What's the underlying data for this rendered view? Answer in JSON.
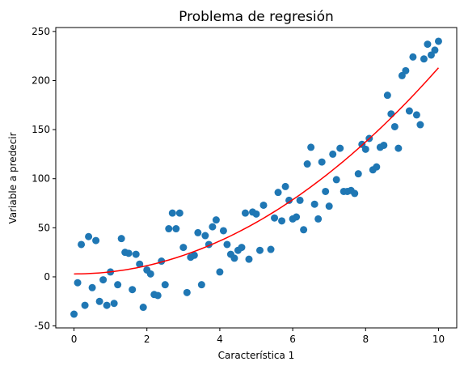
{
  "chart_data": {
    "type": "scatter",
    "title": "Problema de regresión",
    "xlabel": "Característica 1",
    "ylabel": "Variable a predecir",
    "xlim": [
      -0.5,
      10.5
    ],
    "ylim": [
      -52,
      254
    ],
    "xticks": [
      0,
      2,
      4,
      6,
      8,
      10
    ],
    "yticks": [
      -50,
      0,
      50,
      100,
      150,
      200,
      250
    ],
    "grid": false,
    "legend": "none",
    "scatter_color": "#1f77b4",
    "line_color": "#ff0000",
    "points": [
      [
        0.0,
        -38
      ],
      [
        0.1,
        -6
      ],
      [
        0.2,
        33
      ],
      [
        0.3,
        -29
      ],
      [
        0.4,
        41
      ],
      [
        0.5,
        -11
      ],
      [
        0.6,
        37
      ],
      [
        0.7,
        -25
      ],
      [
        0.8,
        -3
      ],
      [
        0.9,
        -29
      ],
      [
        1.0,
        5
      ],
      [
        1.1,
        -27
      ],
      [
        1.2,
        -8
      ],
      [
        1.3,
        39
      ],
      [
        1.4,
        25
      ],
      [
        1.5,
        24
      ],
      [
        1.6,
        -13
      ],
      [
        1.7,
        23
      ],
      [
        1.8,
        13
      ],
      [
        1.9,
        -31
      ],
      [
        2.0,
        7
      ],
      [
        2.1,
        3
      ],
      [
        2.2,
        -18
      ],
      [
        2.3,
        -19
      ],
      [
        2.4,
        16
      ],
      [
        2.5,
        -8
      ],
      [
        2.6,
        49
      ],
      [
        2.7,
        65
      ],
      [
        2.8,
        49
      ],
      [
        2.9,
        65
      ],
      [
        3.0,
        30
      ],
      [
        3.1,
        -16
      ],
      [
        3.2,
        20
      ],
      [
        3.3,
        22
      ],
      [
        3.4,
        45
      ],
      [
        3.5,
        -8
      ],
      [
        3.6,
        42
      ],
      [
        3.7,
        33
      ],
      [
        3.8,
        51
      ],
      [
        3.9,
        58
      ],
      [
        4.0,
        5
      ],
      [
        4.1,
        47
      ],
      [
        4.2,
        33
      ],
      [
        4.3,
        23
      ],
      [
        4.4,
        19
      ],
      [
        4.5,
        27
      ],
      [
        4.6,
        30
      ],
      [
        4.7,
        65
      ],
      [
        4.8,
        18
      ],
      [
        4.9,
        66
      ],
      [
        5.0,
        64
      ],
      [
        5.1,
        27
      ],
      [
        5.2,
        73
      ],
      [
        5.4,
        28
      ],
      [
        5.5,
        60
      ],
      [
        5.6,
        86
      ],
      [
        5.7,
        57
      ],
      [
        5.8,
        92
      ],
      [
        5.9,
        78
      ],
      [
        6.0,
        59
      ],
      [
        6.1,
        61
      ],
      [
        6.2,
        78
      ],
      [
        6.3,
        48
      ],
      [
        6.4,
        115
      ],
      [
        6.5,
        132
      ],
      [
        6.6,
        74
      ],
      [
        6.7,
        59
      ],
      [
        6.8,
        117
      ],
      [
        6.9,
        87
      ],
      [
        7.0,
        72
      ],
      [
        7.1,
        125
      ],
      [
        7.2,
        99
      ],
      [
        7.3,
        131
      ],
      [
        7.4,
        87
      ],
      [
        7.5,
        87
      ],
      [
        7.6,
        88
      ],
      [
        7.7,
        85
      ],
      [
        7.8,
        105
      ],
      [
        7.9,
        135
      ],
      [
        8.0,
        130
      ],
      [
        8.1,
        141
      ],
      [
        8.2,
        109
      ],
      [
        8.3,
        112
      ],
      [
        8.4,
        132
      ],
      [
        8.5,
        134
      ],
      [
        8.6,
        185
      ],
      [
        8.7,
        166
      ],
      [
        8.8,
        153
      ],
      [
        8.9,
        131
      ],
      [
        9.0,
        205
      ],
      [
        9.1,
        210
      ],
      [
        9.2,
        169
      ],
      [
        9.3,
        224
      ],
      [
        9.4,
        165
      ],
      [
        9.5,
        155
      ],
      [
        9.6,
        222
      ],
      [
        9.7,
        237
      ],
      [
        9.8,
        226
      ],
      [
        9.9,
        231
      ],
      [
        10.0,
        240
      ]
    ],
    "fit_line": {
      "form": "quadratic",
      "coefficients": [
        3,
        0,
        2.1
      ],
      "x_range": [
        0,
        10
      ]
    }
  }
}
